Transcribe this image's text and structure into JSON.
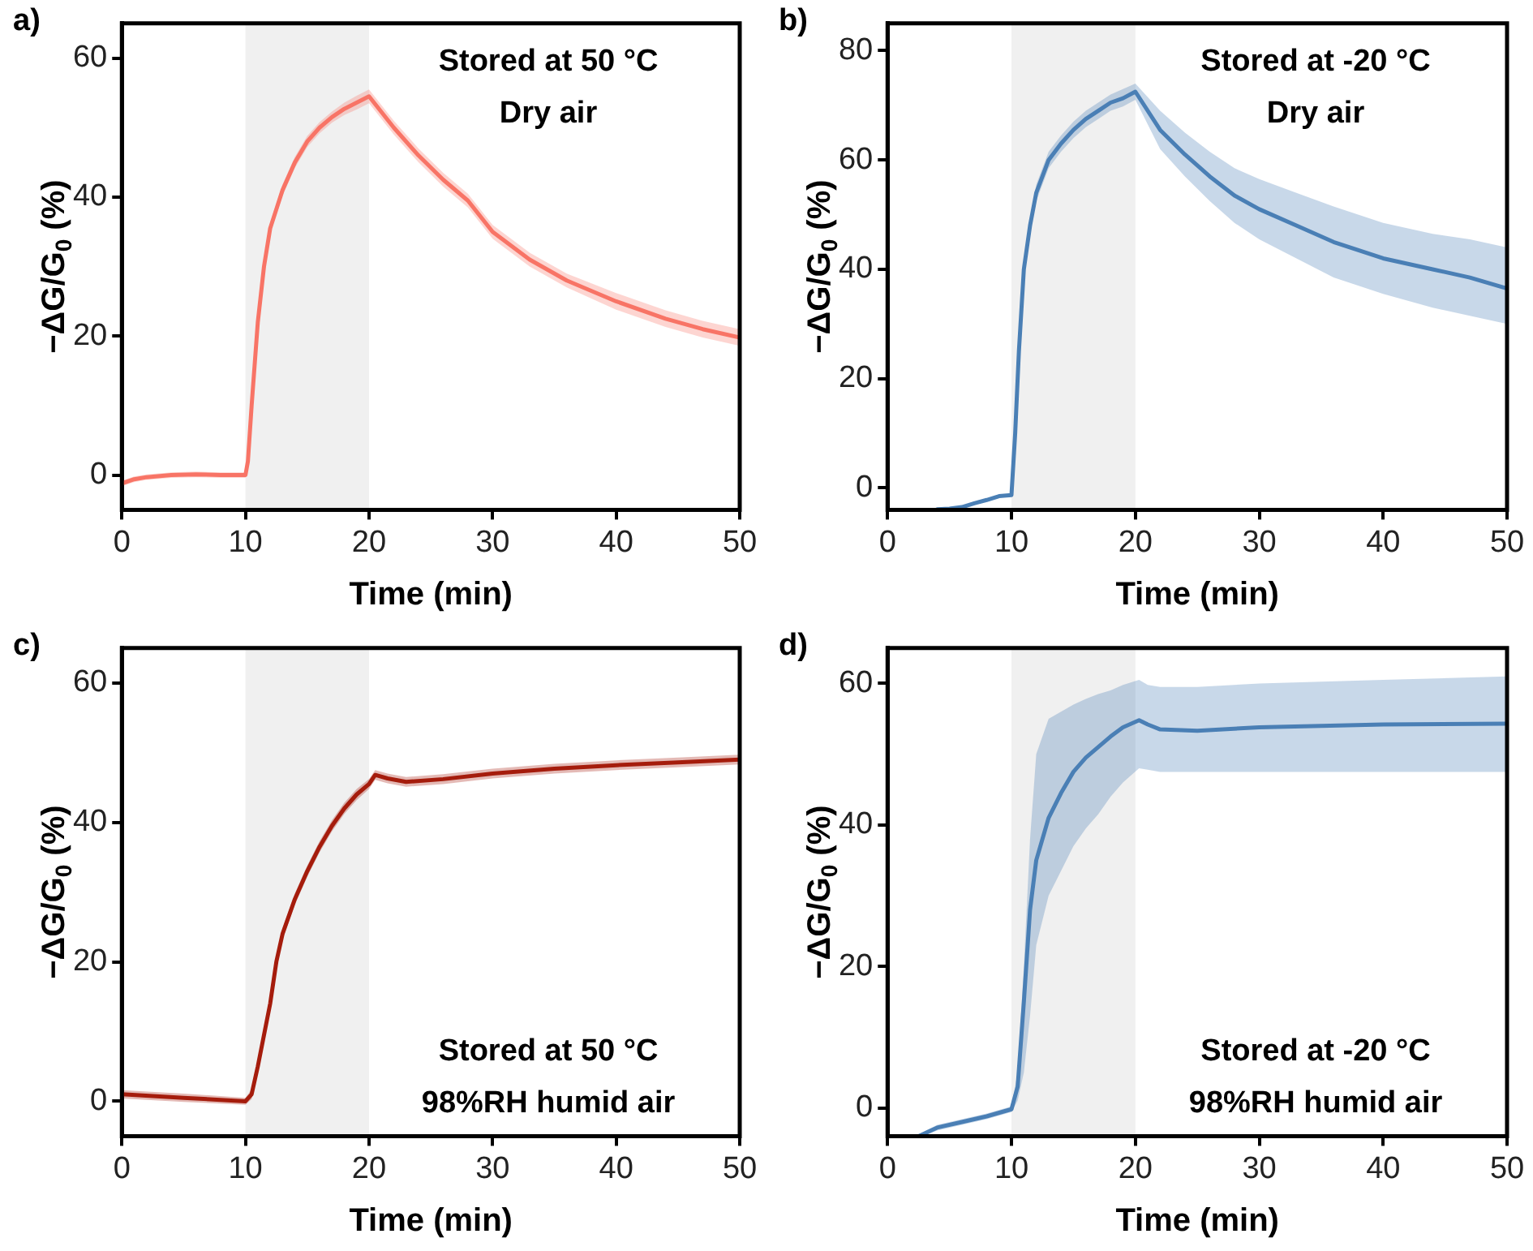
{
  "chart_data": [
    {
      "type": "line",
      "title": "a)",
      "xlabel": "Time (min)",
      "ylabel": "−ΔG/G$_{0}$ (%)",
      "xlim": [
        0,
        50
      ],
      "xticks": [
        0,
        10,
        20,
        30,
        40,
        50
      ],
      "ylim": [
        -5,
        65
      ],
      "yticks": [
        0,
        20,
        40,
        60
      ],
      "grid": false,
      "legend": false,
      "marker": "none",
      "line_style": "solid",
      "bands": [
        {
          "axis": "x",
          "from": 10,
          "to": 20,
          "color": "#f0f0f0"
        }
      ],
      "annotations": [
        "Stored at 50 °C",
        "Dry air"
      ],
      "series": [
        {
          "color": "#f87466",
          "x": [
            0,
            1,
            2,
            4,
            6,
            8,
            10,
            10.2,
            10.5,
            11,
            11.5,
            12,
            13,
            14,
            15,
            16,
            17,
            18,
            19,
            20,
            22,
            24,
            26,
            28,
            30,
            33,
            36,
            40,
            44,
            47,
            50
          ],
          "values": [
            -1.2,
            -0.6,
            -0.3,
            0,
            0.1,
            0,
            0,
            2,
            10,
            22,
            30,
            35.5,
            41,
            45,
            48,
            50,
            51.5,
            52.7,
            53.6,
            54.5,
            50,
            46,
            42.5,
            39.5,
            35,
            31,
            28,
            25,
            22.5,
            21,
            19.8
          ],
          "lower": [
            -1.6,
            -1,
            -0.7,
            -0.4,
            -0.3,
            -0.4,
            -0.4,
            1.5,
            9.5,
            21.3,
            29.2,
            34.7,
            40.2,
            44.2,
            47.2,
            49.2,
            50.7,
            51.8,
            52.6,
            53.5,
            49,
            45,
            41.5,
            38.5,
            34,
            30,
            27,
            23.8,
            21.3,
            19.8,
            18.6
          ],
          "upper": [
            -0.8,
            -0.2,
            0.1,
            0.4,
            0.5,
            0.4,
            0.4,
            2.5,
            10.5,
            22.7,
            30.8,
            36.3,
            41.8,
            45.8,
            48.8,
            50.8,
            52.3,
            53.6,
            54.6,
            55.5,
            51,
            47,
            43.5,
            40.5,
            36,
            32,
            29,
            26.2,
            23.7,
            22.2,
            21
          ]
        }
      ]
    },
    {
      "type": "line",
      "title": "b)",
      "xlabel": "Time (min)",
      "ylabel": "−ΔG/G$_{0}$ (%)",
      "xlim": [
        0,
        50
      ],
      "xticks": [
        0,
        10,
        20,
        30,
        40,
        50
      ],
      "ylim": [
        -4,
        85
      ],
      "yticks": [
        0,
        20,
        40,
        60,
        80
      ],
      "grid": false,
      "legend": false,
      "marker": "none",
      "line_style": "solid",
      "bands": [
        {
          "axis": "x",
          "from": 10,
          "to": 20,
          "color": "#f0f0f0"
        }
      ],
      "annotations": [
        "Stored at -20 °C",
        "Dry air"
      ],
      "series": [
        {
          "color": "#4a7fb5",
          "x": [
            4,
            5,
            6,
            7,
            8,
            9,
            10,
            10.3,
            10.6,
            11,
            11.5,
            12,
            13,
            14,
            15,
            16,
            17,
            18,
            19,
            20,
            22,
            24,
            26,
            28,
            30,
            33,
            36,
            40,
            44,
            47,
            50
          ],
          "values": [
            -3.9,
            -3.8,
            -3.5,
            -2.8,
            -2.2,
            -1.5,
            -1.3,
            10,
            25,
            40,
            48,
            54,
            60,
            63,
            65.5,
            67.5,
            69,
            70.5,
            71.3,
            72.5,
            65.5,
            61,
            57,
            53.5,
            51,
            48,
            45,
            42,
            40,
            38.5,
            36.5
          ],
          "lower": [
            -3.9,
            -3.8,
            -3.5,
            -2.8,
            -2.2,
            -1.5,
            -1.3,
            9.5,
            24,
            39,
            47,
            52.5,
            58.5,
            61.5,
            64,
            66,
            67.5,
            69,
            69.8,
            71,
            62,
            57,
            52.5,
            48.5,
            45.5,
            42,
            38.5,
            35.5,
            33,
            31.5,
            30
          ],
          "upper": [
            -3.9,
            -3.8,
            -3.5,
            -2.8,
            -2.2,
            -1.5,
            -1.3,
            10.5,
            26,
            41,
            49,
            55.5,
            61.5,
            64.5,
            67,
            69,
            70.5,
            72,
            73,
            74,
            69,
            65,
            61.5,
            58.5,
            56.5,
            54,
            51.5,
            48.5,
            46.5,
            45.5,
            44
          ]
        }
      ]
    },
    {
      "type": "line",
      "title": "c)",
      "xlabel": "Time (min)",
      "ylabel": "−ΔG/G$_{0}$ (%)",
      "xlim": [
        0,
        50
      ],
      "xticks": [
        0,
        10,
        20,
        30,
        40,
        50
      ],
      "ylim": [
        -5,
        65
      ],
      "yticks": [
        0,
        20,
        40,
        60
      ],
      "grid": false,
      "legend": false,
      "marker": "none",
      "line_style": "solid",
      "bands": [
        {
          "axis": "x",
          "from": 10,
          "to": 20,
          "color": "#f0f0f0"
        }
      ],
      "annotations": [
        "Stored at 50 °C",
        "98%RH humid air"
      ],
      "series": [
        {
          "color": "#a51c0c",
          "x": [
            0,
            5,
            10,
            10.5,
            11,
            12,
            12.5,
            13,
            14,
            15,
            16,
            17,
            18,
            19,
            20,
            20.5,
            21.5,
            23,
            26,
            30,
            35,
            40,
            45,
            50
          ],
          "values": [
            1,
            0.5,
            0,
            1,
            5,
            14,
            20,
            24,
            29,
            33,
            36.5,
            39.5,
            42,
            44,
            45.5,
            46.8,
            46.3,
            45.8,
            46.2,
            47,
            47.7,
            48.2,
            48.6,
            49
          ],
          "lower": [
            0.4,
            -0.1,
            -0.5,
            0.3,
            4.2,
            13.2,
            19.2,
            23.2,
            28.2,
            32.2,
            35.7,
            38.7,
            41.2,
            43.2,
            44.8,
            46.1,
            45.6,
            45.1,
            45.5,
            46.3,
            47,
            47.5,
            47.9,
            48.3
          ],
          "upper": [
            1.6,
            1.1,
            0.5,
            1.7,
            5.8,
            14.8,
            20.8,
            24.8,
            29.8,
            33.8,
            37.3,
            40.3,
            42.8,
            44.8,
            46.2,
            47.5,
            47,
            46.5,
            46.9,
            47.7,
            48.4,
            48.9,
            49.3,
            49.7
          ]
        }
      ]
    },
    {
      "type": "line",
      "title": "d)",
      "xlabel": "Time (min)",
      "ylabel": "−ΔG/G$_{0}$ (%)",
      "xlim": [
        0,
        50
      ],
      "xticks": [
        0,
        10,
        20,
        30,
        40,
        50
      ],
      "ylim": [
        -4,
        65
      ],
      "yticks": [
        0,
        20,
        40,
        60
      ],
      "grid": false,
      "legend": false,
      "marker": "none",
      "line_style": "solid",
      "bands": [
        {
          "axis": "x",
          "from": 10,
          "to": 20,
          "color": "#f0f0f0"
        }
      ],
      "annotations": [
        "Stored at -20 °C",
        "98%RH humid air"
      ],
      "series": [
        {
          "color": "#4a7fb5",
          "x": [
            2.5,
            3,
            4,
            6,
            8,
            10,
            10.5,
            11,
            11.5,
            12,
            13,
            14,
            15,
            16,
            17,
            18,
            19,
            20.3,
            21,
            22,
            25,
            30,
            40,
            50
          ],
          "values": [
            -4,
            -3.6,
            -2.8,
            -2,
            -1.2,
            -0.2,
            3,
            15,
            28,
            35,
            41,
            44.5,
            47.5,
            49.5,
            51,
            52.5,
            53.8,
            54.8,
            54.2,
            53.5,
            53.3,
            53.8,
            54.2,
            54.3
          ],
          "lower": [
            -4,
            -3.9,
            -3.2,
            -2.4,
            -1.6,
            -0.6,
            1,
            5,
            13,
            23,
            30,
            33.5,
            37,
            39.5,
            41.5,
            44,
            46,
            48,
            47.8,
            47.5,
            47.5,
            47.5,
            47.5,
            47.5
          ],
          "upper": [
            -4,
            -3.3,
            -2.4,
            -1.6,
            -0.8,
            0.2,
            5,
            20,
            38,
            50,
            55,
            56,
            57,
            57.8,
            58.5,
            59,
            59.8,
            60.5,
            59.8,
            59.5,
            59.5,
            60,
            60.5,
            61
          ]
        }
      ]
    }
  ]
}
